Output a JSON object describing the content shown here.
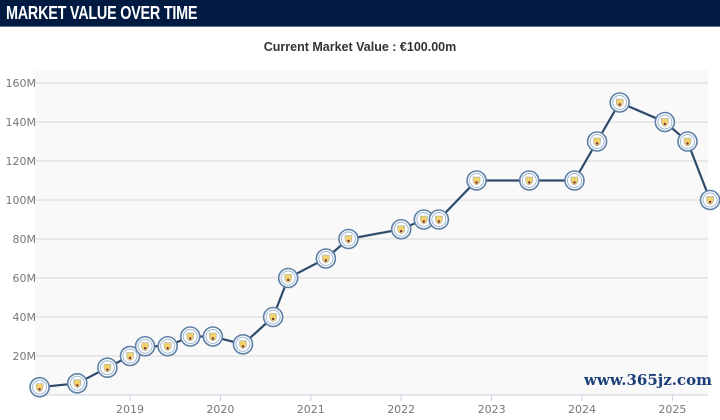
{
  "header": {
    "title": "MARKET VALUE OVER TIME"
  },
  "subtitle": "Current Market Value : €100.00m",
  "watermark": "www.365jz.com",
  "colors": {
    "header_bg": "#001a42",
    "line": "#2f4a6b",
    "marker_ring": "#5d7fa6",
    "badge": "#f2d36b",
    "plot_bg": "#f9f9f9",
    "grid": "#d8d8d8"
  },
  "chart_data": {
    "type": "line",
    "title": "Current Market Value : €100.00m",
    "xlabel": "",
    "ylabel": "",
    "marker_icon": "club-crest-icon",
    "xlim": [
      "2017-12",
      "2025-07"
    ],
    "ylim": [
      0,
      165
    ],
    "y_unit": "M",
    "x_ticks": [
      "2019",
      "2020",
      "2021",
      "2022",
      "2023",
      "2024",
      "2025"
    ],
    "y_ticks": [
      "20M",
      "40M",
      "60M",
      "80M",
      "100M",
      "120M",
      "140M",
      "160M"
    ],
    "grid": true,
    "points": [
      {
        "date": "2018-01",
        "value": 4
      },
      {
        "date": "2018-06",
        "value": 6
      },
      {
        "date": "2018-10",
        "value": 14
      },
      {
        "date": "2019-01",
        "value": 20
      },
      {
        "date": "2019-03",
        "value": 25
      },
      {
        "date": "2019-06",
        "value": 25
      },
      {
        "date": "2019-09",
        "value": 30
      },
      {
        "date": "2019-12",
        "value": 30
      },
      {
        "date": "2020-04",
        "value": 26
      },
      {
        "date": "2020-08",
        "value": 40
      },
      {
        "date": "2020-10",
        "value": 60
      },
      {
        "date": "2021-03",
        "value": 70
      },
      {
        "date": "2021-06",
        "value": 80
      },
      {
        "date": "2022-01",
        "value": 85
      },
      {
        "date": "2022-04",
        "value": 90
      },
      {
        "date": "2022-06",
        "value": 90
      },
      {
        "date": "2022-11",
        "value": 110
      },
      {
        "date": "2023-06",
        "value": 110
      },
      {
        "date": "2023-12",
        "value": 110
      },
      {
        "date": "2024-03",
        "value": 130
      },
      {
        "date": "2024-06",
        "value": 150
      },
      {
        "date": "2024-12",
        "value": 140
      },
      {
        "date": "2025-03",
        "value": 130
      },
      {
        "date": "2025-06",
        "value": 100
      }
    ]
  }
}
